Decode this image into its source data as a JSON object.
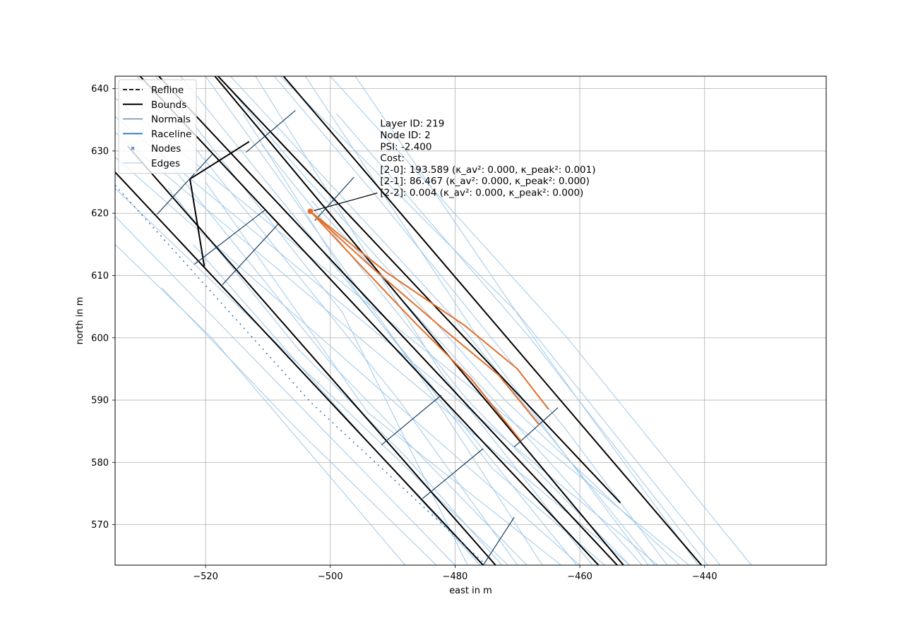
{
  "chart_data": {
    "type": "line",
    "xlabel": "east in m",
    "ylabel": "north in m",
    "xlim": [
      -534.5,
      -420.5
    ],
    "ylim": [
      563.5,
      642
    ],
    "xticks": [
      -520,
      -500,
      -480,
      -460,
      -440
    ],
    "yticks": [
      570,
      580,
      590,
      600,
      610,
      620,
      630,
      640
    ],
    "xtick_labels": [
      "−520",
      "−500",
      "−480",
      "−460",
      "−440"
    ],
    "ytick_labels": [
      "570",
      "580",
      "590",
      "600",
      "610",
      "620",
      "630",
      "640"
    ],
    "grid": true,
    "legend": {
      "placement": "top-left",
      "entries": [
        {
          "label": "Refline",
          "style": "dashed",
          "color": "#000000"
        },
        {
          "label": "Bounds",
          "style": "solid-thick",
          "color": "#000000"
        },
        {
          "label": "Normals",
          "style": "solid-thin",
          "color": "#2c5b8a"
        },
        {
          "label": "Raceline",
          "style": "solid",
          "color": "#1f6fb4"
        },
        {
          "label": "Nodes",
          "style": "marker-x",
          "color": "#1f6fb4"
        },
        {
          "label": "Edges",
          "style": "solid-thin",
          "color": "#9fc8e8"
        }
      ]
    },
    "colors": {
      "bounds": "#000000",
      "normals": "#1c3f5f",
      "edges": "#9fc8e8",
      "raceline": "#1f6fb4",
      "highlight": "#e2702c",
      "grid": "#b0b0b0"
    },
    "bounds": [
      [
        [
          -534.5,
          626.6
        ],
        [
          -475.5,
          563.5
        ]
      ],
      [
        [
          -532.5,
          630.8
        ],
        [
          -473.5,
          563.5
        ]
      ],
      [
        [
          -520.2,
          611.5
        ],
        [
          -522.5,
          625.5
        ]
      ],
      [
        [
          -522.5,
          625.5
        ],
        [
          -513,
          631.5
        ]
      ],
      [
        [
          -530.5,
          642
        ],
        [
          -457,
          563.5
        ]
      ],
      [
        [
          -527.5,
          642
        ],
        [
          -454,
          563.5
        ]
      ],
      [
        [
          -518,
          642
        ],
        [
          -453.5,
          573.5
        ]
      ],
      [
        [
          -507.5,
          642
        ],
        [
          -440.5,
          563.5
        ]
      ],
      [
        [
          -518.5,
          642
        ],
        [
          -453,
          563.5
        ]
      ]
    ],
    "normals": [
      [
        [
          -527.8,
          619.8
        ],
        [
          -518.8,
          629.6
        ]
      ],
      [
        [
          -517.3,
          608.5
        ],
        [
          -508.3,
          618.3
        ]
      ],
      [
        [
          -513.5,
          629.8
        ],
        [
          -505.6,
          636.5
        ]
      ],
      [
        [
          -502.5,
          618.8
        ],
        [
          -496.2,
          625.8
        ]
      ],
      [
        [
          -491.8,
          582.8
        ],
        [
          -482.2,
          590.8
        ]
      ],
      [
        [
          -485.2,
          574.2
        ],
        [
          -475.5,
          582.2
        ]
      ],
      [
        [
          -470.5,
          582.5
        ],
        [
          -463.5,
          588.8
        ]
      ],
      [
        [
          -475.5,
          563.5
        ],
        [
          -470.5,
          571.2
        ]
      ],
      [
        [
          -521.8,
          611.8
        ],
        [
          -510.5,
          620.5
        ]
      ]
    ],
    "edges": [
      [
        [
          -534.5,
          629.0
        ],
        [
          -460.0,
          563.5
        ]
      ],
      [
        [
          -534.5,
          624.0
        ],
        [
          -471.5,
          563.5
        ]
      ],
      [
        [
          -534.5,
          619.5
        ],
        [
          -480.0,
          563.5
        ]
      ],
      [
        [
          -534.5,
          635.5
        ],
        [
          -447.5,
          563.5
        ]
      ],
      [
        [
          -534.5,
          638.5
        ],
        [
          -442.5,
          563.5
        ]
      ],
      [
        [
          -534.5,
          633.0
        ],
        [
          -452.0,
          563.5
        ]
      ],
      [
        [
          -531.0,
          642.0
        ],
        [
          -489.0,
          590.0
        ],
        [
          -470.0,
          563.5
        ]
      ],
      [
        [
          -528.0,
          642.0
        ],
        [
          -498.0,
          604.0
        ],
        [
          -478.0,
          563.5
        ]
      ],
      [
        [
          -524.0,
          642.0
        ],
        [
          -490.0,
          600.0
        ],
        [
          -460.5,
          563.5
        ]
      ],
      [
        [
          -520.0,
          642.0
        ],
        [
          -487.0,
          596.0
        ],
        [
          -466.0,
          563.5
        ]
      ],
      [
        [
          -516.0,
          642.0
        ],
        [
          -480.0,
          603.0
        ],
        [
          -448.0,
          563.5
        ]
      ],
      [
        [
          -512.0,
          642.0
        ],
        [
          -482.0,
          594.0
        ],
        [
          -458.0,
          563.5
        ]
      ],
      [
        [
          -508.0,
          642.0
        ],
        [
          -470.0,
          604.0
        ],
        [
          -437.5,
          563.5
        ]
      ],
      [
        [
          -504.0,
          642.0
        ],
        [
          -475.0,
          598.0
        ],
        [
          -449.0,
          563.5
        ]
      ],
      [
        [
          -500.0,
          642.0
        ],
        [
          -462.0,
          600.0
        ],
        [
          -432.5,
          563.5
        ]
      ],
      [
        [
          -496.0,
          642.0
        ],
        [
          -466.0,
          598.0
        ],
        [
          -441.0,
          563.5
        ]
      ],
      [
        [
          -511.0,
          631.0
        ],
        [
          -478.0,
          590.0
        ],
        [
          -452.0,
          563.5
        ]
      ],
      [
        [
          -520.0,
          625.0
        ],
        [
          -494.0,
          588.0
        ],
        [
          -463.0,
          563.5
        ]
      ],
      [
        [
          -529.0,
          632.0
        ],
        [
          -500.0,
          596.0
        ],
        [
          -468.5,
          563.5
        ]
      ],
      [
        [
          -517.0,
          641.0
        ],
        [
          -506.0,
          628.0
        ],
        [
          -472.0,
          590.0
        ],
        [
          -444.0,
          563.5
        ]
      ],
      [
        [
          -503.0,
          622.0
        ],
        [
          -472.0,
          588.0
        ],
        [
          -450.0,
          563.5
        ]
      ],
      [
        [
          -534.5,
          615.0
        ],
        [
          -519.0,
          600.0
        ],
        [
          -488.0,
          563.5
        ]
      ],
      [
        [
          -527.0,
          608.0
        ],
        [
          -505.0,
          585.0
        ],
        [
          -483.0,
          563.5
        ]
      ],
      [
        [
          -522.0,
          615.0
        ],
        [
          -500.0,
          590.0
        ],
        [
          -476.0,
          563.5
        ]
      ],
      [
        [
          -509.0,
          642.0
        ],
        [
          -492.0,
          622.0
        ],
        [
          -462.0,
          585.0
        ],
        [
          -446.0,
          563.5
        ]
      ],
      [
        [
          -499.0,
          636.0
        ],
        [
          -468.0,
          600.0
        ],
        [
          -439.5,
          563.5
        ]
      ],
      [
        [
          -514.0,
          636.0
        ],
        [
          -497.0,
          609.0
        ],
        [
          -474.0,
          579.0
        ],
        [
          -456.0,
          563.5
        ]
      ],
      [
        [
          -526.0,
          624.0
        ],
        [
          -505.0,
          598.0
        ],
        [
          -488.0,
          581.0
        ],
        [
          -472.5,
          563.5
        ]
      ]
    ],
    "raceline": [
      [
        -534.5,
        624.5
      ],
      [
        -503.0,
        589.5
      ],
      [
        -475.0,
        563.5
      ]
    ],
    "highlight_edges": [
      [
        [
          -503.2,
          620.3
        ],
        [
          -495.5,
          612.0
        ],
        [
          -486.5,
          602.5
        ],
        [
          -477.5,
          593.5
        ],
        [
          -469.5,
          583.5
        ]
      ],
      [
        [
          -503.2,
          620.3
        ],
        [
          -493.0,
          611.0
        ],
        [
          -482.0,
          601.5
        ],
        [
          -473.0,
          594.0
        ],
        [
          -466.5,
          586.0
        ]
      ],
      [
        [
          -503.2,
          620.3
        ],
        [
          -491.0,
          610.5
        ],
        [
          -478.5,
          602.0
        ],
        [
          -470.0,
          595.0
        ],
        [
          -465.0,
          588.5
        ]
      ]
    ],
    "selected_node": {
      "x": -503.2,
      "y": 620.3
    },
    "annotation": {
      "lines": [
        "Layer ID: 219",
        "Node ID: 2",
        "PSI: -2.400",
        "Cost:",
        "[2-0]: 193.589 (κ_av²: 0.000, κ_peak²: 0.001)",
        "[2-1]: 86.467 (κ_av²: 0.000, κ_peak²: 0.000)",
        "[2-2]: 0.004 (κ_av²: 0.000, κ_peak²: 0.000)"
      ],
      "anchor": {
        "x": -503.2,
        "y": 620.3
      },
      "text_at": {
        "x": -492.0,
        "y": 622.8
      }
    }
  }
}
